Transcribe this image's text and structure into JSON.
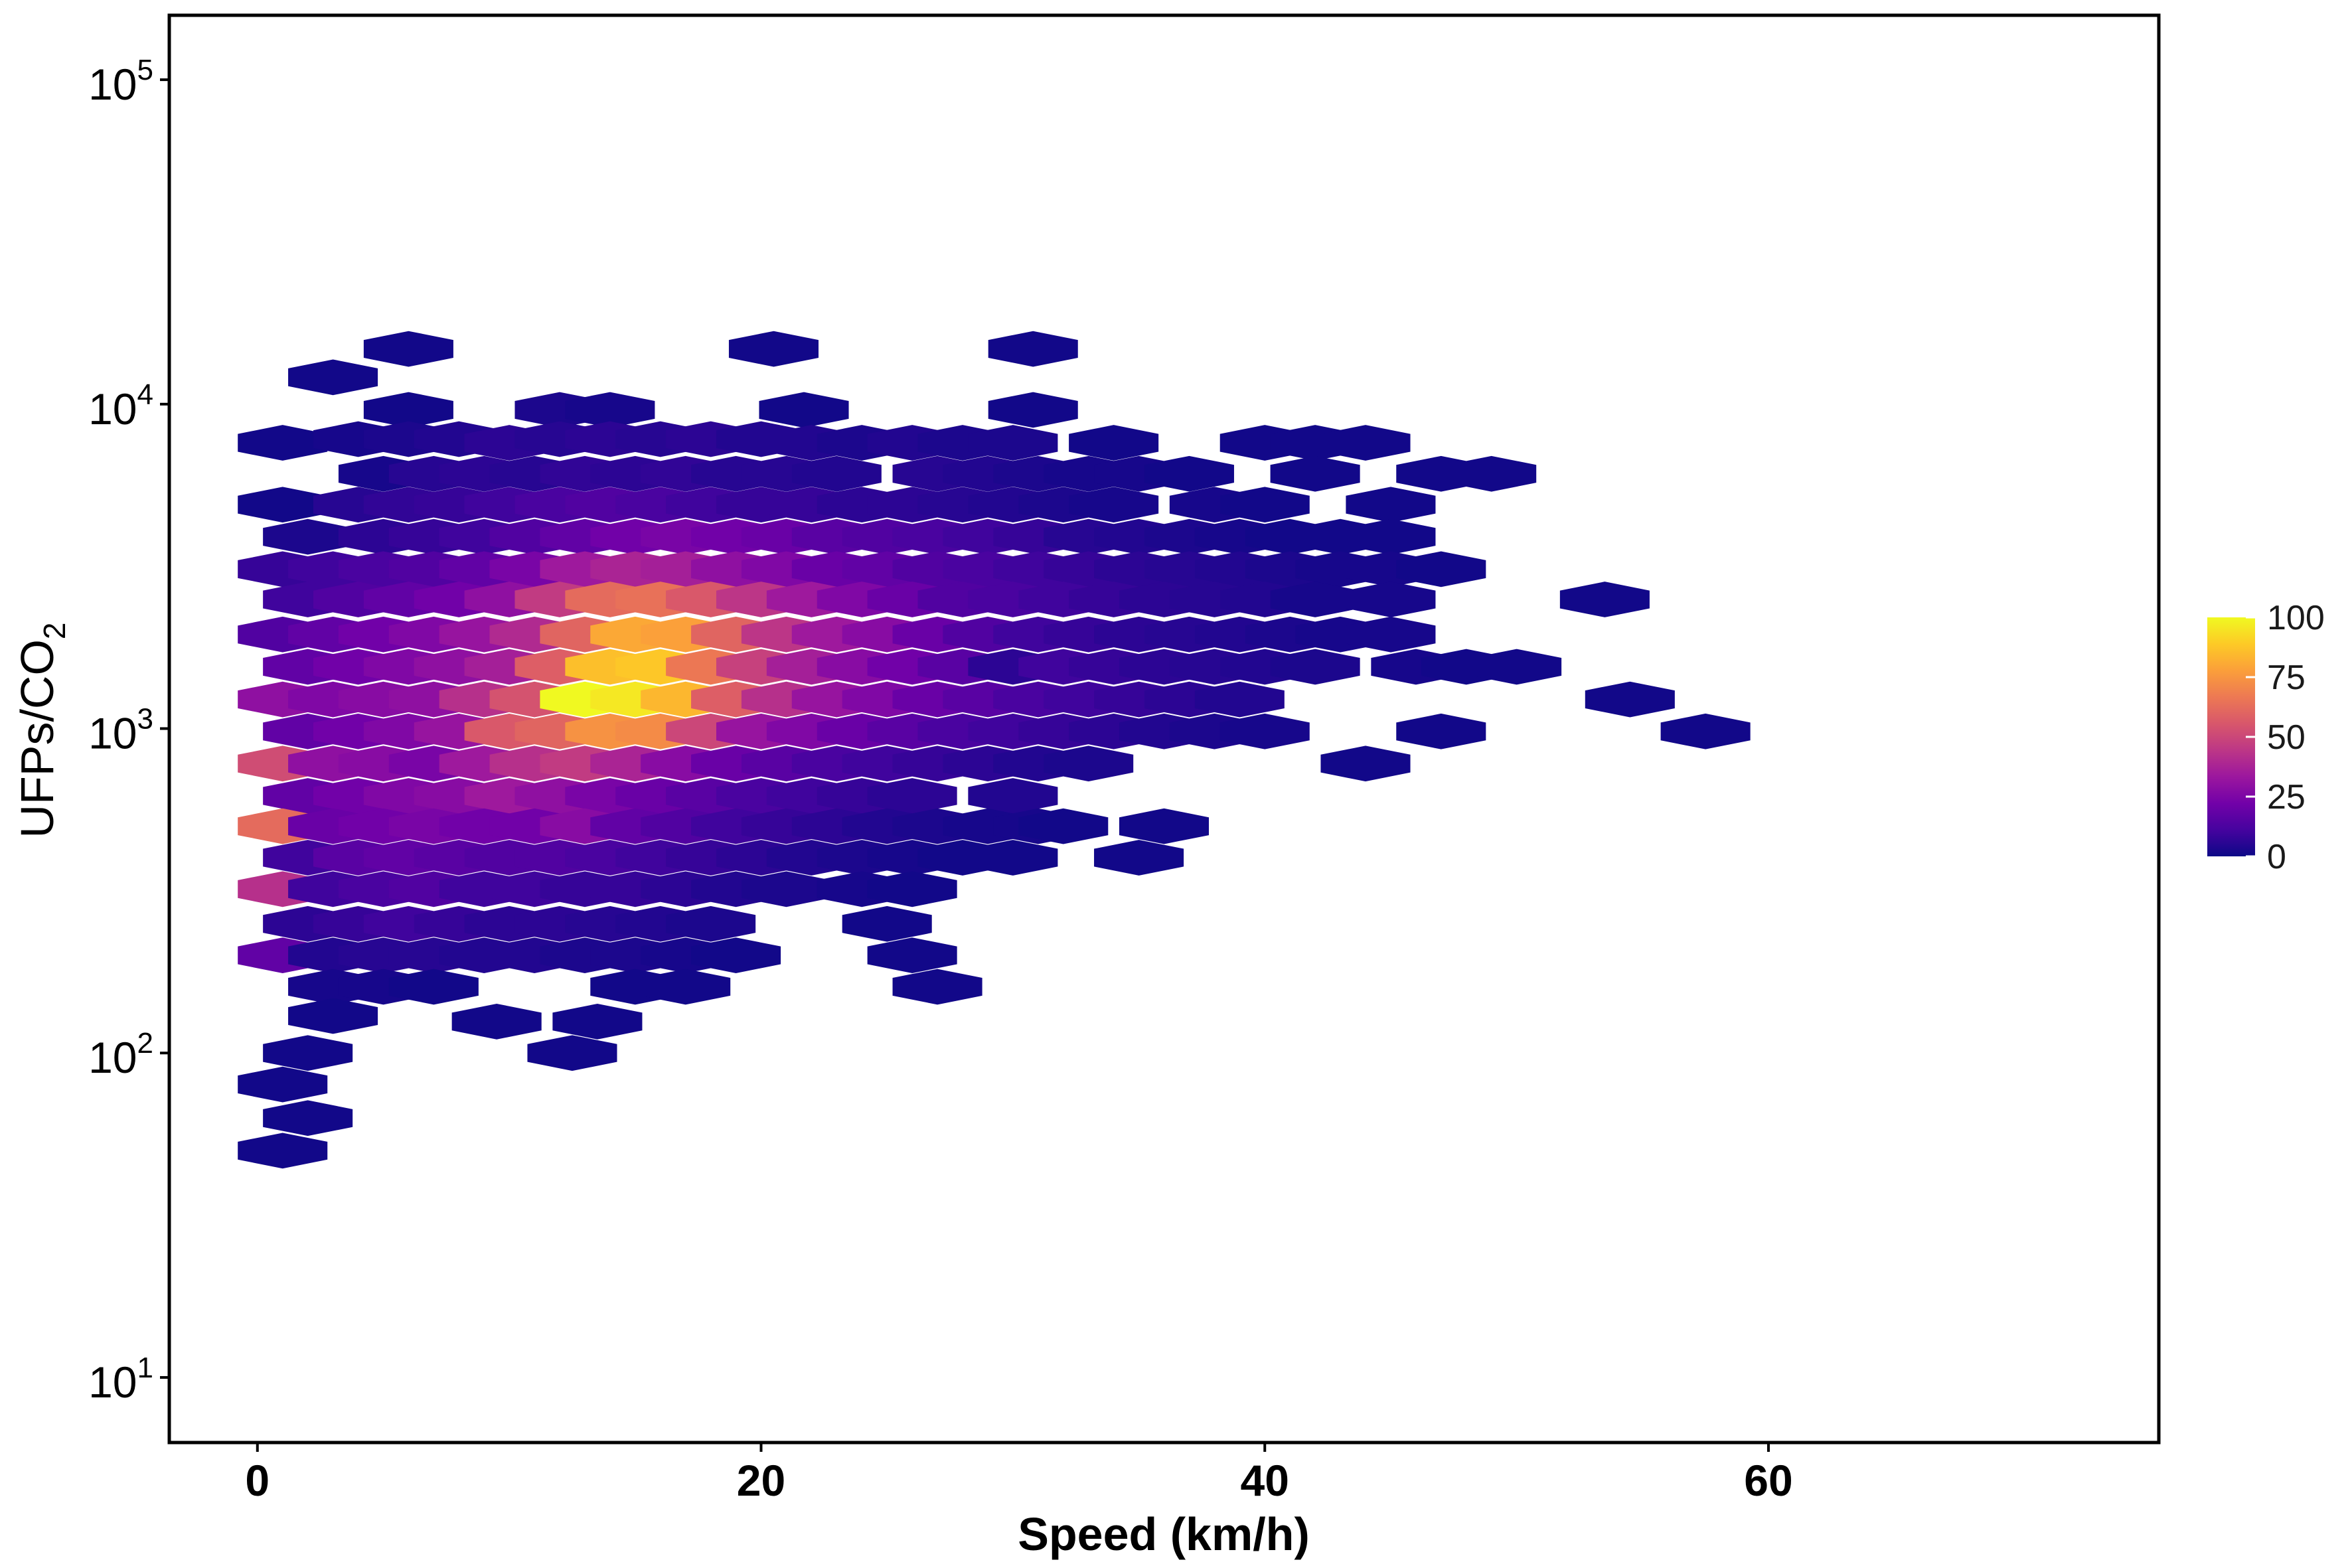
{
  "chart_data": {
    "type": "heatmap",
    "subtype": "hexbin",
    "xlabel": "Speed (km/h)",
    "ylabel_main": "UFPs/CO",
    "ylabel_sub": "2",
    "x_ticks": [
      "0",
      "20",
      "40",
      "60"
    ],
    "x_tick_values": [
      0,
      20,
      40,
      60
    ],
    "xlim": [
      -3.5,
      75.5
    ],
    "y_scale": "log10",
    "ylim": [
      6.3,
      158000
    ],
    "y_ticks": [
      {
        "value": 10,
        "base": "10",
        "exp": "1"
      },
      {
        "value": 100,
        "base": "10",
        "exp": "2"
      },
      {
        "value": 1000,
        "base": "10",
        "exp": "3"
      },
      {
        "value": 10000,
        "base": "10",
        "exp": "4"
      },
      {
        "value": 100000,
        "base": "10",
        "exp": "5"
      }
    ],
    "colormap": [
      "#0d0887",
      "#46039f",
      "#7201a8",
      "#9c179e",
      "#bd3786",
      "#d8576b",
      "#ed7953",
      "#fb9f3a",
      "#fdca26",
      "#f0f921"
    ],
    "legend": {
      "position": "right",
      "ticks": [
        "100",
        "75",
        "50",
        "25",
        "0"
      ],
      "tick_values": [
        100,
        75,
        50,
        25,
        0
      ],
      "range": [
        0,
        100
      ]
    },
    "hex_grid": {
      "dx": 3.1,
      "dlog10y": 0.1
    },
    "bins": [
      [
        6,
        14.8,
        1
      ],
      [
        20.5,
        14.8,
        1
      ],
      [
        30.8,
        14.8,
        1
      ],
      [
        3,
        12.1,
        1
      ],
      [
        6,
        9.6,
        1
      ],
      [
        12,
        9.6,
        3
      ],
      [
        14,
        9.6,
        2
      ],
      [
        21.7,
        9.6,
        1
      ],
      [
        30.8,
        9.6,
        1
      ],
      [
        1,
        7.6,
        1
      ],
      [
        4,
        7.8,
        2
      ],
      [
        6,
        7.8,
        3
      ],
      [
        8,
        7.8,
        4
      ],
      [
        10,
        7.6,
        6
      ],
      [
        12,
        7.8,
        5
      ],
      [
        14,
        7.8,
        6
      ],
      [
        16,
        7.8,
        5
      ],
      [
        18,
        7.8,
        6
      ],
      [
        20,
        7.8,
        4
      ],
      [
        22,
        7.6,
        4
      ],
      [
        24,
        7.6,
        3
      ],
      [
        26,
        7.6,
        4
      ],
      [
        28,
        7.6,
        3
      ],
      [
        30,
        7.6,
        3
      ],
      [
        34,
        7.6,
        1
      ],
      [
        40,
        7.6,
        1
      ],
      [
        42,
        7.6,
        1
      ],
      [
        44,
        7.6,
        1
      ],
      [
        5,
        6.1,
        2
      ],
      [
        7,
        6.1,
        5
      ],
      [
        9,
        6.1,
        6
      ],
      [
        11,
        6.1,
        5
      ],
      [
        13,
        6.1,
        7
      ],
      [
        15,
        6.1,
        6
      ],
      [
        17,
        6.1,
        7
      ],
      [
        19,
        6.1,
        5
      ],
      [
        21,
        6.1,
        5
      ],
      [
        23,
        6.1,
        4
      ],
      [
        27,
        6.1,
        5
      ],
      [
        29,
        6.1,
        4
      ],
      [
        31,
        6.1,
        3
      ],
      [
        33,
        6.1,
        2
      ],
      [
        35,
        6.1,
        2
      ],
      [
        37,
        6.1,
        1
      ],
      [
        42,
        6.1,
        1
      ],
      [
        47,
        6.1,
        1
      ],
      [
        49,
        6.1,
        1
      ],
      [
        1,
        4.9,
        1
      ],
      [
        4,
        4.9,
        5
      ],
      [
        6,
        4.9,
        7
      ],
      [
        8,
        4.9,
        8
      ],
      [
        10,
        4.9,
        10
      ],
      [
        12,
        4.9,
        12
      ],
      [
        14,
        4.9,
        14
      ],
      [
        16,
        4.9,
        12
      ],
      [
        18,
        4.9,
        10
      ],
      [
        20,
        4.9,
        8
      ],
      [
        22,
        4.9,
        8
      ],
      [
        24,
        4.9,
        6
      ],
      [
        26,
        4.9,
        6
      ],
      [
        28,
        4.9,
        5
      ],
      [
        30,
        4.9,
        4
      ],
      [
        32,
        4.9,
        3
      ],
      [
        34,
        4.9,
        2
      ],
      [
        38,
        4.9,
        2
      ],
      [
        40,
        4.9,
        1
      ],
      [
        45,
        4.9,
        1
      ],
      [
        2,
        3.9,
        3
      ],
      [
        5,
        3.9,
        6
      ],
      [
        7,
        3.9,
        8
      ],
      [
        9,
        3.9,
        10
      ],
      [
        11,
        3.9,
        14
      ],
      [
        13,
        3.9,
        18
      ],
      [
        15,
        3.9,
        22
      ],
      [
        17,
        3.9,
        24
      ],
      [
        19,
        3.9,
        22
      ],
      [
        21,
        3.9,
        20
      ],
      [
        23,
        3.9,
        16
      ],
      [
        25,
        3.9,
        14
      ],
      [
        27,
        3.9,
        12
      ],
      [
        29,
        3.9,
        10
      ],
      [
        31,
        3.9,
        8
      ],
      [
        33,
        3.9,
        5
      ],
      [
        35,
        3.9,
        4
      ],
      [
        37,
        3.9,
        3
      ],
      [
        39,
        3.9,
        2
      ],
      [
        41,
        3.9,
        1
      ],
      [
        43,
        3.9,
        1
      ],
      [
        45,
        3.9,
        1
      ],
      [
        1,
        3.1,
        8
      ],
      [
        3,
        3.1,
        10
      ],
      [
        5,
        3.1,
        12
      ],
      [
        7,
        3.1,
        14
      ],
      [
        9,
        3.1,
        18
      ],
      [
        11,
        3.1,
        24
      ],
      [
        13,
        3.1,
        34
      ],
      [
        15,
        3.1,
        38
      ],
      [
        17,
        3.1,
        36
      ],
      [
        19,
        3.1,
        30
      ],
      [
        21,
        3.1,
        26
      ],
      [
        23,
        3.1,
        20
      ],
      [
        25,
        3.1,
        18
      ],
      [
        27,
        3.1,
        14
      ],
      [
        29,
        3.1,
        12
      ],
      [
        31,
        3.1,
        10
      ],
      [
        33,
        3.1,
        8
      ],
      [
        35,
        3.1,
        6
      ],
      [
        37,
        3.1,
        5
      ],
      [
        39,
        3.1,
        4
      ],
      [
        41,
        3.1,
        3
      ],
      [
        43,
        3.1,
        2
      ],
      [
        45,
        3.1,
        2
      ],
      [
        47,
        3.1,
        1
      ],
      [
        2,
        2.5,
        10
      ],
      [
        4,
        2.5,
        14
      ],
      [
        6,
        2.5,
        18
      ],
      [
        8,
        2.5,
        22
      ],
      [
        10,
        2.5,
        30
      ],
      [
        12,
        2.5,
        46
      ],
      [
        14,
        2.5,
        62
      ],
      [
        16,
        2.5,
        64
      ],
      [
        18,
        2.5,
        56
      ],
      [
        20,
        2.5,
        44
      ],
      [
        22,
        2.5,
        34
      ],
      [
        24,
        2.5,
        26
      ],
      [
        26,
        2.5,
        20
      ],
      [
        28,
        2.5,
        14
      ],
      [
        30,
        2.5,
        12
      ],
      [
        32,
        2.5,
        10
      ],
      [
        34,
        2.5,
        8
      ],
      [
        36,
        2.5,
        6
      ],
      [
        38,
        2.5,
        5
      ],
      [
        40,
        2.5,
        4
      ],
      [
        42,
        2.5,
        2
      ],
      [
        45,
        2.5,
        2
      ],
      [
        53.5,
        2.5,
        1
      ],
      [
        1,
        1.95,
        14
      ],
      [
        3,
        1.95,
        18
      ],
      [
        5,
        1.95,
        22
      ],
      [
        7,
        1.95,
        26
      ],
      [
        9,
        1.95,
        32
      ],
      [
        11,
        1.95,
        40
      ],
      [
        13,
        1.95,
        60
      ],
      [
        15,
        1.95,
        80
      ],
      [
        17,
        1.95,
        78
      ],
      [
        19,
        1.95,
        60
      ],
      [
        21,
        1.95,
        44
      ],
      [
        23,
        1.95,
        34
      ],
      [
        25,
        1.95,
        28
      ],
      [
        27,
        1.95,
        20
      ],
      [
        29,
        1.95,
        14
      ],
      [
        31,
        1.95,
        10
      ],
      [
        33,
        1.95,
        8
      ],
      [
        35,
        1.95,
        6
      ],
      [
        37,
        1.95,
        5
      ],
      [
        39,
        1.95,
        4
      ],
      [
        41,
        1.95,
        3
      ],
      [
        43,
        1.95,
        2
      ],
      [
        45,
        1.95,
        2
      ],
      [
        2,
        1.55,
        18
      ],
      [
        4,
        1.55,
        22
      ],
      [
        6,
        1.55,
        26
      ],
      [
        8,
        1.55,
        30
      ],
      [
        10,
        1.55,
        36
      ],
      [
        12,
        1.55,
        58
      ],
      [
        14,
        1.55,
        86
      ],
      [
        16,
        1.55,
        88
      ],
      [
        18,
        1.55,
        66
      ],
      [
        20,
        1.55,
        48
      ],
      [
        22,
        1.55,
        36
      ],
      [
        24,
        1.55,
        28
      ],
      [
        26,
        1.55,
        22
      ],
      [
        28,
        1.55,
        16
      ],
      [
        30,
        1.55,
        6
      ],
      [
        32,
        1.55,
        10
      ],
      [
        34,
        1.55,
        8
      ],
      [
        36,
        1.55,
        6
      ],
      [
        38,
        1.55,
        5
      ],
      [
        40,
        1.55,
        4
      ],
      [
        42,
        1.55,
        3
      ],
      [
        46,
        1.55,
        2
      ],
      [
        48,
        1.55,
        1
      ],
      [
        50,
        1.55,
        1
      ],
      [
        1,
        1.23,
        30
      ],
      [
        3,
        1.23,
        26
      ],
      [
        5,
        1.23,
        28
      ],
      [
        7,
        1.23,
        30
      ],
      [
        9,
        1.23,
        42
      ],
      [
        11,
        1.23,
        54
      ],
      [
        13,
        1.23,
        100
      ],
      [
        15,
        1.23,
        96
      ],
      [
        17,
        1.23,
        84
      ],
      [
        19,
        1.23,
        58
      ],
      [
        21,
        1.23,
        42
      ],
      [
        23,
        1.23,
        32
      ],
      [
        25,
        1.23,
        26
      ],
      [
        27,
        1.23,
        20
      ],
      [
        29,
        1.23,
        16
      ],
      [
        31,
        1.23,
        12
      ],
      [
        33,
        1.23,
        10
      ],
      [
        35,
        1.23,
        8
      ],
      [
        37,
        1.23,
        6
      ],
      [
        39,
        1.23,
        4
      ],
      [
        54.5,
        1.23,
        1
      ],
      [
        2,
        0.98,
        18
      ],
      [
        4,
        0.98,
        22
      ],
      [
        6,
        0.98,
        26
      ],
      [
        8,
        0.98,
        32
      ],
      [
        10,
        0.98,
        56
      ],
      [
        12,
        0.98,
        60
      ],
      [
        14,
        0.98,
        74
      ],
      [
        16,
        0.98,
        72
      ],
      [
        18,
        0.98,
        50
      ],
      [
        20,
        0.98,
        32
      ],
      [
        22,
        0.98,
        26
      ],
      [
        24,
        0.98,
        20
      ],
      [
        26,
        0.98,
        16
      ],
      [
        28,
        0.98,
        12
      ],
      [
        30,
        0.98,
        10
      ],
      [
        32,
        0.98,
        8
      ],
      [
        34,
        0.98,
        6
      ],
      [
        36,
        0.98,
        4
      ],
      [
        38,
        0.98,
        3
      ],
      [
        40,
        0.98,
        2
      ],
      [
        47,
        0.98,
        1
      ],
      [
        57.5,
        0.98,
        1
      ],
      [
        1,
        0.78,
        52
      ],
      [
        3,
        0.78,
        30
      ],
      [
        5,
        0.78,
        28
      ],
      [
        7,
        0.78,
        24
      ],
      [
        9,
        0.78,
        34
      ],
      [
        11,
        0.78,
        42
      ],
      [
        13,
        0.78,
        46
      ],
      [
        15,
        0.78,
        38
      ],
      [
        17,
        0.78,
        28
      ],
      [
        19,
        0.78,
        20
      ],
      [
        21,
        0.78,
        16
      ],
      [
        23,
        0.78,
        12
      ],
      [
        25,
        0.78,
        10
      ],
      [
        27,
        0.78,
        8
      ],
      [
        29,
        0.78,
        6
      ],
      [
        31,
        0.78,
        4
      ],
      [
        33,
        0.78,
        3
      ],
      [
        44,
        0.78,
        1
      ],
      [
        2,
        0.62,
        18
      ],
      [
        4,
        0.62,
        22
      ],
      [
        6,
        0.62,
        26
      ],
      [
        8,
        0.62,
        28
      ],
      [
        10,
        0.62,
        34
      ],
      [
        12,
        0.62,
        30
      ],
      [
        14,
        0.62,
        24
      ],
      [
        16,
        0.62,
        20
      ],
      [
        18,
        0.62,
        16
      ],
      [
        20,
        0.62,
        12
      ],
      [
        22,
        0.62,
        10
      ],
      [
        24,
        0.62,
        8
      ],
      [
        26,
        0.62,
        6
      ],
      [
        30,
        0.62,
        4
      ],
      [
        1,
        0.5,
        62
      ],
      [
        3,
        0.5,
        20
      ],
      [
        5,
        0.5,
        22
      ],
      [
        7,
        0.5,
        24
      ],
      [
        9,
        0.5,
        22
      ],
      [
        11,
        0.5,
        22
      ],
      [
        13,
        0.5,
        28
      ],
      [
        15,
        0.5,
        18
      ],
      [
        17,
        0.5,
        14
      ],
      [
        19,
        0.5,
        10
      ],
      [
        21,
        0.5,
        8
      ],
      [
        23,
        0.5,
        6
      ],
      [
        25,
        0.5,
        4
      ],
      [
        27,
        0.5,
        3
      ],
      [
        29,
        0.5,
        2
      ],
      [
        31,
        0.5,
        2
      ],
      [
        32,
        0.5,
        1
      ],
      [
        36,
        0.5,
        1
      ],
      [
        2,
        0.4,
        10
      ],
      [
        4,
        0.4,
        16
      ],
      [
        6,
        0.4,
        18
      ],
      [
        8,
        0.4,
        16
      ],
      [
        10,
        0.4,
        14
      ],
      [
        12,
        0.4,
        14
      ],
      [
        14,
        0.4,
        12
      ],
      [
        16,
        0.4,
        10
      ],
      [
        18,
        0.4,
        8
      ],
      [
        20,
        0.4,
        6
      ],
      [
        22,
        0.4,
        4
      ],
      [
        24,
        0.4,
        3
      ],
      [
        26,
        0.4,
        2
      ],
      [
        28,
        0.4,
        1
      ],
      [
        30,
        0.4,
        1
      ],
      [
        35,
        0.4,
        1
      ],
      [
        1,
        0.32,
        42
      ],
      [
        3,
        0.32,
        10
      ],
      [
        5,
        0.32,
        12
      ],
      [
        7,
        0.32,
        14
      ],
      [
        9,
        0.32,
        10
      ],
      [
        11,
        0.32,
        10
      ],
      [
        13,
        0.32,
        8
      ],
      [
        15,
        0.32,
        8
      ],
      [
        17,
        0.32,
        6
      ],
      [
        19,
        0.32,
        4
      ],
      [
        21,
        0.32,
        3
      ],
      [
        24,
        0.32,
        2
      ],
      [
        26,
        0.32,
        1
      ],
      [
        2,
        0.25,
        6
      ],
      [
        4,
        0.25,
        8
      ],
      [
        6,
        0.25,
        10
      ],
      [
        8,
        0.25,
        8
      ],
      [
        10,
        0.25,
        6
      ],
      [
        12,
        0.25,
        6
      ],
      [
        14,
        0.25,
        5
      ],
      [
        16,
        0.25,
        4
      ],
      [
        18,
        0.25,
        3
      ],
      [
        25,
        0.25,
        1
      ],
      [
        1,
        0.2,
        18
      ],
      [
        3,
        0.2,
        4
      ],
      [
        5,
        0.2,
        5
      ],
      [
        7,
        0.2,
        5
      ],
      [
        9,
        0.2,
        4
      ],
      [
        11,
        0.2,
        4
      ],
      [
        13,
        0.2,
        3
      ],
      [
        15,
        0.2,
        3
      ],
      [
        17,
        0.2,
        2
      ],
      [
        19,
        0.2,
        1
      ],
      [
        26,
        0.2,
        1
      ],
      [
        3,
        0.16,
        2
      ],
      [
        5,
        0.16,
        2
      ],
      [
        7,
        0.16,
        1
      ],
      [
        15,
        0.16,
        1
      ],
      [
        17,
        0.16,
        1
      ],
      [
        27,
        0.16,
        1
      ],
      [
        3,
        0.13,
        1
      ],
      [
        9.5,
        0.125,
        1
      ],
      [
        13.5,
        0.125,
        1
      ],
      [
        2,
        0.1,
        1
      ],
      [
        12.5,
        0.1,
        1
      ],
      [
        1,
        0.08,
        1
      ],
      [
        2,
        0.063,
        1
      ],
      [
        1,
        0.05,
        1
      ]
    ]
  }
}
